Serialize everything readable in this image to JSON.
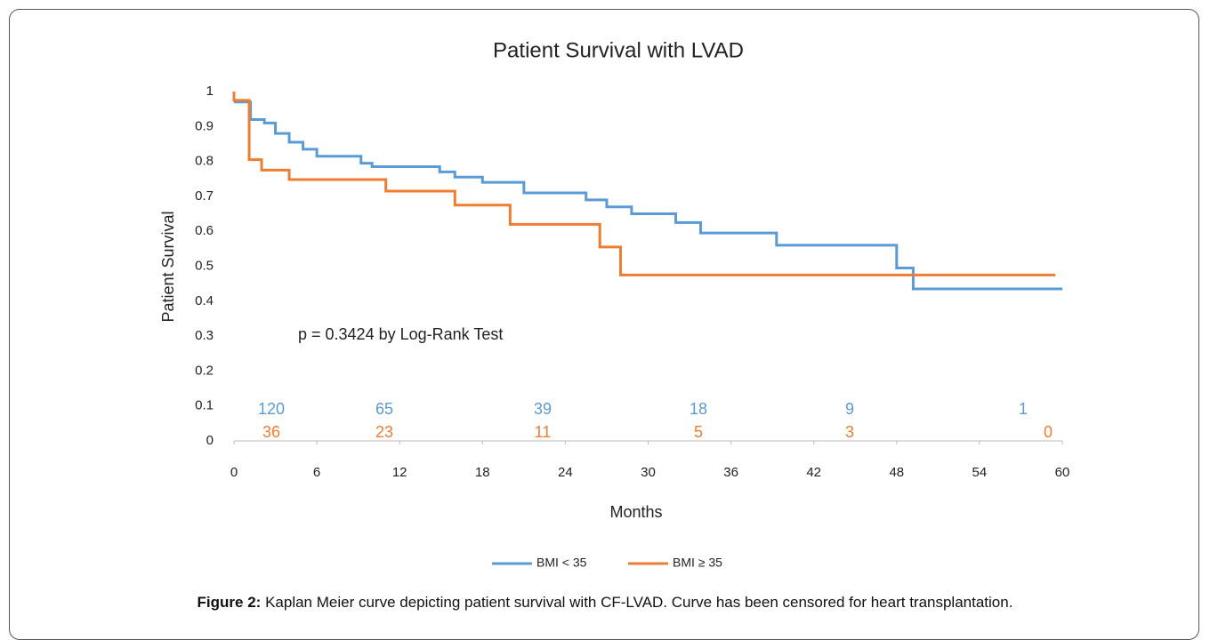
{
  "chart_data": {
    "type": "line",
    "step": "post",
    "title": "Patient Survival with LVAD",
    "x_label": "Months",
    "y_label": "Patient Survival",
    "annotation": "p = 0.3424 by Log-Rank Test",
    "xlim": [
      0,
      60
    ],
    "xticks": [
      0,
      6,
      12,
      18,
      24,
      30,
      36,
      42,
      48,
      54,
      60
    ],
    "ylim": [
      0,
      1
    ],
    "yticks": [
      0,
      0.1,
      0.2,
      0.3,
      0.4,
      0.5,
      0.6,
      0.7,
      0.8,
      0.9,
      1
    ],
    "grid": false,
    "legend": "bottom",
    "series": [
      {
        "name": "BMI < 35",
        "color": "#5b9bd5",
        "x": [
          0,
          1.2,
          2.2,
          3,
          4,
          5,
          6,
          9.2,
          10,
          14.9,
          16,
          18,
          21,
          25.5,
          27,
          28.8,
          32,
          33.8,
          39.3,
          48,
          49.2,
          60
        ],
        "values": [
          0.97,
          0.92,
          0.91,
          0.88,
          0.855,
          0.835,
          0.815,
          0.795,
          0.785,
          0.77,
          0.755,
          0.74,
          0.71,
          0.69,
          0.67,
          0.65,
          0.625,
          0.595,
          0.56,
          0.495,
          0.435,
          0.435
        ],
        "at_risk": [
          120,
          65,
          39,
          18,
          9,
          1
        ]
      },
      {
        "name": "BMI ≥ 35",
        "color": "#ed7d31",
        "x": [
          0,
          0,
          1.1,
          2,
          4,
          11,
          16,
          20,
          26.5,
          28,
          59.5
        ],
        "values": [
          1,
          0.975,
          0.805,
          0.775,
          0.748,
          0.715,
          0.675,
          0.62,
          0.555,
          0.475,
          0.475
        ],
        "at_risk": [
          36,
          23,
          11,
          5,
          3,
          0
        ]
      }
    ]
  },
  "caption": {
    "label": "Figure 2:",
    "text": "Kaplan Meier curve depicting patient survival with CF-LVAD. Curve has been censored for heart transplantation."
  }
}
